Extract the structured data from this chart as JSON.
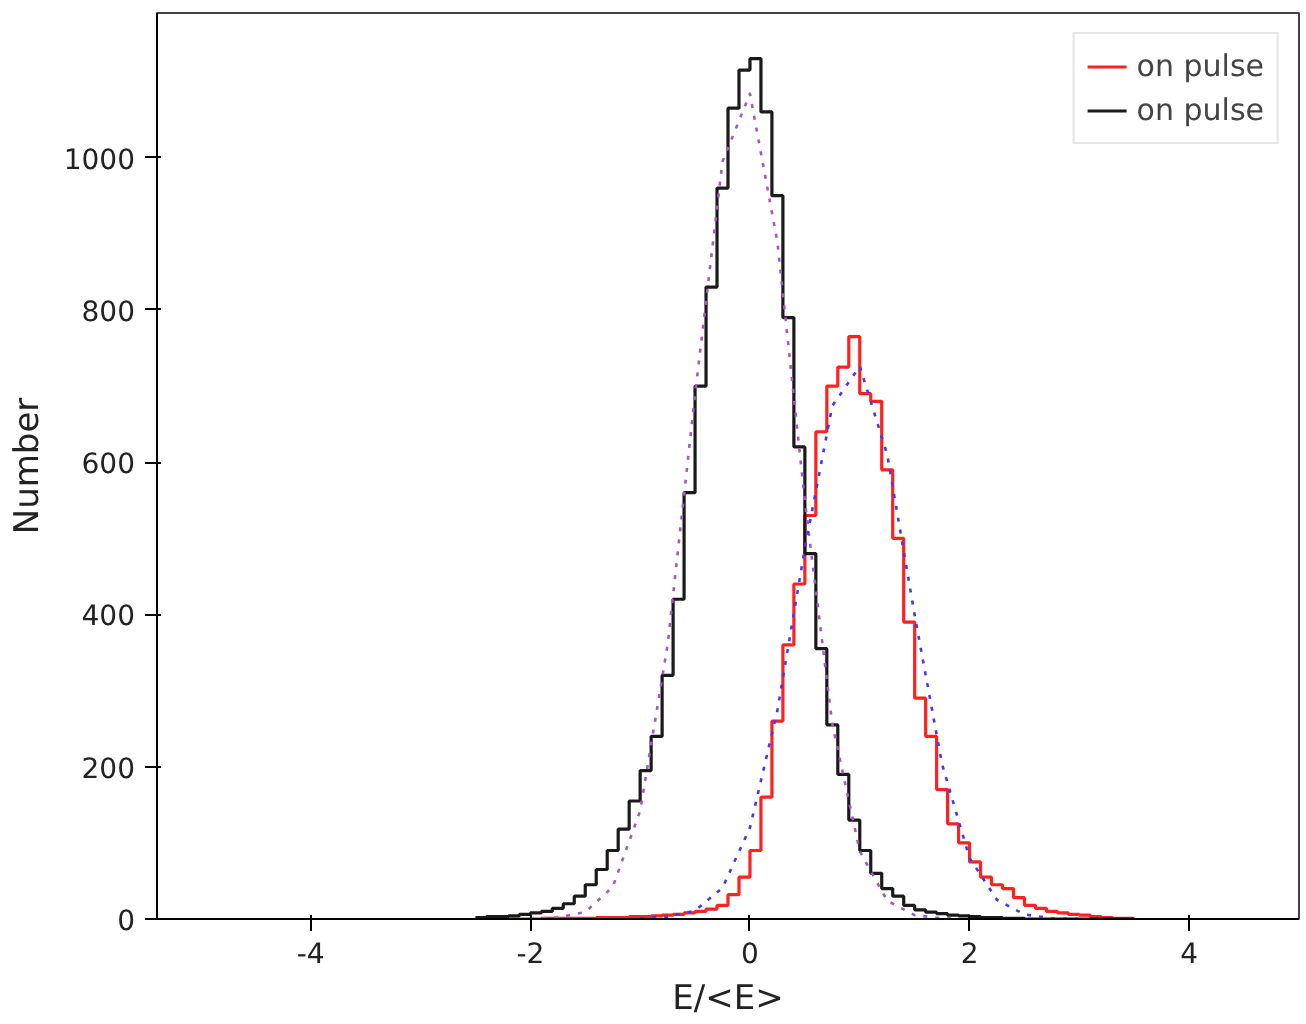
{
  "chart_data": {
    "type": "histogram",
    "xlabel": "E/<E>",
    "ylabel": "Number",
    "bins": [
      -2.5,
      -2.4,
      -2.3,
      -2.2,
      -2.1,
      -2.0,
      -1.9,
      -1.8,
      -1.7,
      -1.6,
      -1.5,
      -1.4,
      -1.3,
      -1.2,
      -1.1,
      -1.0,
      -0.9,
      -0.8,
      -0.7,
      -0.6,
      -0.5,
      -0.4,
      -0.3,
      -0.2,
      -0.1,
      0.0,
      0.1,
      0.2,
      0.3,
      0.4,
      0.5,
      0.6,
      0.7,
      0.8,
      0.9,
      1.0,
      1.1,
      1.2,
      1.3,
      1.4,
      1.5,
      1.6,
      1.7,
      1.8,
      1.9,
      2.0,
      2.1,
      2.2,
      2.3,
      2.4,
      2.5,
      2.6,
      2.7,
      2.8,
      2.9,
      3.0,
      3.1,
      3.2,
      3.3,
      3.4,
      3.5
    ],
    "series": [
      {
        "name": "on pulse",
        "color": "#ff2020",
        "values": [
          0,
          0,
          0,
          0,
          0,
          0,
          1,
          1,
          1,
          1,
          1,
          2,
          2,
          2,
          3,
          3,
          4,
          5,
          6,
          8,
          10,
          13,
          18,
          32,
          55,
          90,
          160,
          260,
          360,
          440,
          530,
          640,
          700,
          725,
          765,
          690,
          680,
          590,
          500,
          390,
          290,
          240,
          170,
          125,
          100,
          75,
          55,
          45,
          40,
          28,
          18,
          14,
          10,
          8,
          6,
          5,
          3,
          2,
          1,
          1
        ]
      },
      {
        "name": "on pulse",
        "color": "#1a1a1a",
        "values": [
          2,
          3,
          3,
          4,
          6,
          8,
          10,
          14,
          20,
          30,
          45,
          65,
          90,
          118,
          155,
          195,
          240,
          320,
          420,
          560,
          700,
          830,
          960,
          1065,
          1115,
          1130,
          1060,
          950,
          790,
          620,
          480,
          355,
          255,
          190,
          130,
          90,
          60,
          40,
          30,
          18,
          12,
          9,
          7,
          5,
          4,
          3,
          2,
          2,
          1,
          1,
          0,
          0,
          0,
          0,
          0,
          0,
          0,
          0,
          0,
          0
        ]
      },
      {
        "type": "line",
        "line_style": "dotted",
        "color": "#a855c8",
        "x": [
          -2.0,
          -1.75,
          -1.5,
          -1.25,
          -1.0,
          -0.75,
          -0.5,
          -0.25,
          0.0,
          0.25,
          0.5,
          0.75,
          1.0,
          1.25,
          1.5,
          1.75,
          2.0
        ],
        "values": [
          0,
          2,
          9,
          42,
          142,
          360,
          689,
          995,
          1084,
          889,
          549,
          256,
          89,
          24,
          5,
          1,
          0
        ]
      },
      {
        "type": "line",
        "line_style": "dotted",
        "color": "#3b3bff",
        "x": [
          -1.0,
          -0.75,
          -0.5,
          -0.25,
          0.0,
          0.25,
          0.5,
          0.75,
          1.0,
          1.25,
          1.5,
          1.75,
          2.0,
          2.25,
          2.5,
          2.75,
          3.0
        ],
        "values": [
          1,
          3,
          11,
          41,
          120,
          274,
          487,
          674,
          726,
          610,
          399,
          203,
          80,
          25,
          6,
          1,
          0
        ]
      }
    ],
    "xlim": [
      -5.4,
      5.0
    ],
    "xticks": [
      -4,
      -2,
      0,
      2,
      4
    ],
    "ylim": [
      0,
      1190
    ],
    "yticks": [
      0,
      200,
      400,
      600,
      800,
      1000
    ],
    "legend": "top right"
  }
}
